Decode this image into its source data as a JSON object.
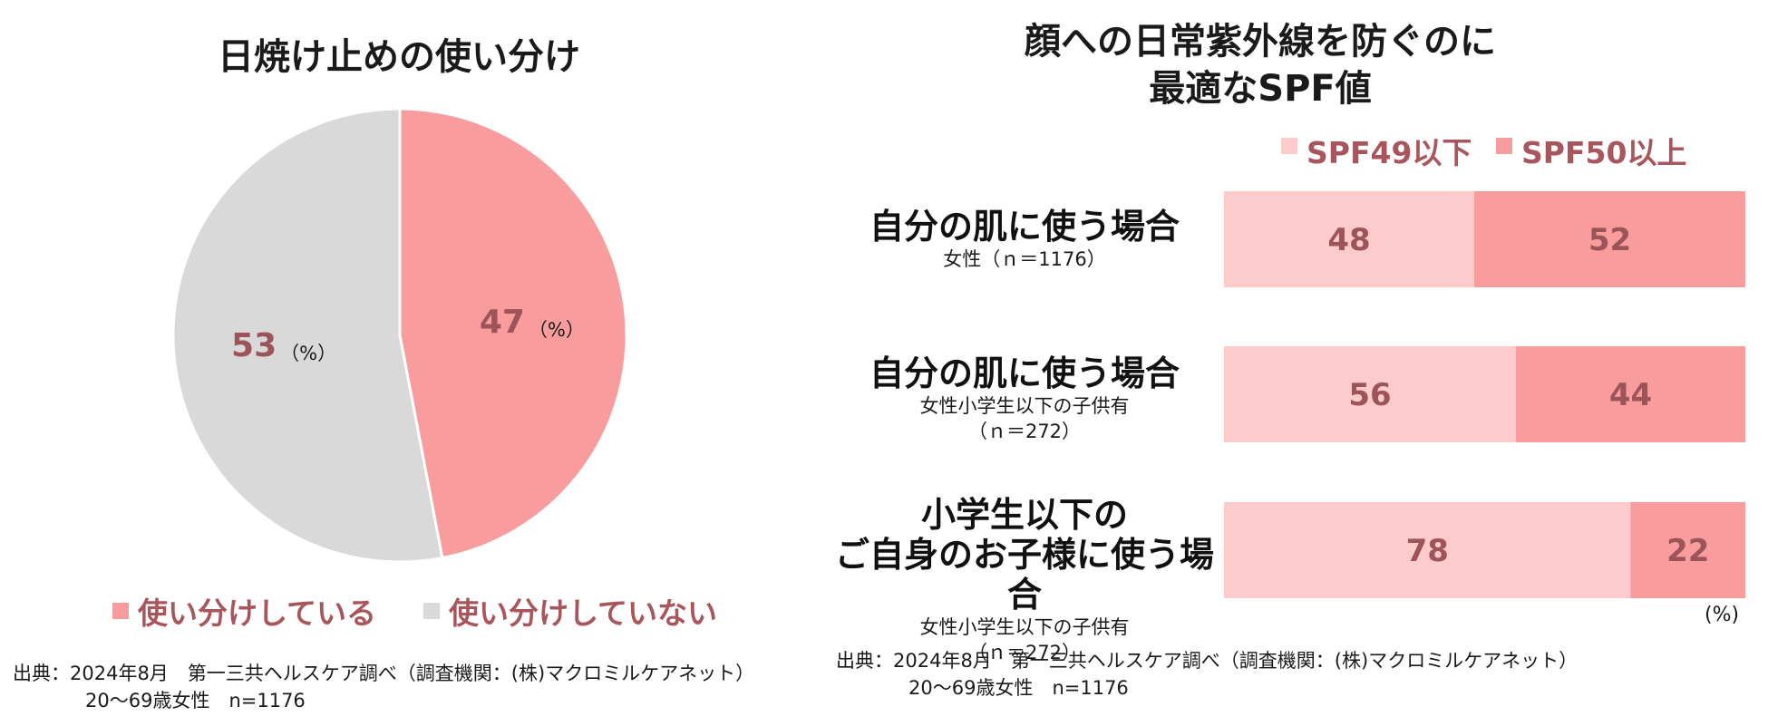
{
  "pie": {
    "title": "日焼け止めの使い分け",
    "pct_unit": "（%）",
    "legend": [
      {
        "label": "使い分けしている",
        "color": "#f99c9d"
      },
      {
        "label": "使い分けしていない",
        "color": "#d9d9d9"
      }
    ],
    "source_line1": "出典：2024年8月　第一三共ヘルスケア調べ（調査機関：(株)マクロミルケアネット）",
    "source_line2": "20～69歳女性　n=1176"
  },
  "bar": {
    "title_line1": "顔への日常紫外線を防ぐのに",
    "title_line2": "最適なSPF値",
    "unit": "(%)",
    "rows": [
      {
        "label_lines": [
          "自分の肌に使う場合"
        ],
        "sub_lines": [
          "女性（ｎ＝1176）"
        ]
      },
      {
        "label_lines": [
          "自分の肌に使う場合"
        ],
        "sub_lines": [
          "女性小学生以下の子供有",
          "（ｎ＝272）"
        ]
      },
      {
        "label_lines": [
          "小学生以下の",
          "ご自身のお子様に使う場合"
        ],
        "sub_lines": [
          "女性小学生以下の子供有",
          "（ｎ＝272）"
        ]
      }
    ],
    "source_line1": "出典：2024年8月　第一三共ヘルスケア調べ（調査機関：(株)マクロミルケアネット）",
    "source_line2": "20～69歳女性　n=1176"
  },
  "chart_data": [
    {
      "type": "pie",
      "title": "日焼け止めの使い分け",
      "categories": [
        "使い分けしている",
        "使い分けしていない"
      ],
      "values": [
        47,
        53
      ],
      "colors": [
        "#f99c9d",
        "#d9d9d9"
      ],
      "legend": "bottom"
    },
    {
      "type": "bar",
      "orientation": "horizontal",
      "stacked": true,
      "title": "顔への日常紫外線を防ぐのに最適なSPF値",
      "categories": [
        "自分の肌に使う場合（女性 n=1176）",
        "自分の肌に使う場合（女性小学生以下の子供有 n=272）",
        "小学生以下のご自身のお子様に使う場合（女性小学生以下の子供有 n=272）"
      ],
      "series": [
        {
          "name": "SPF49以下",
          "values": [
            48,
            56,
            78
          ],
          "color": "#fdcbcc"
        },
        {
          "name": "SPF50以上",
          "values": [
            52,
            44,
            22
          ],
          "color": "#f99c9d"
        }
      ],
      "xlim": [
        0,
        100
      ],
      "legend": "top-right"
    }
  ]
}
